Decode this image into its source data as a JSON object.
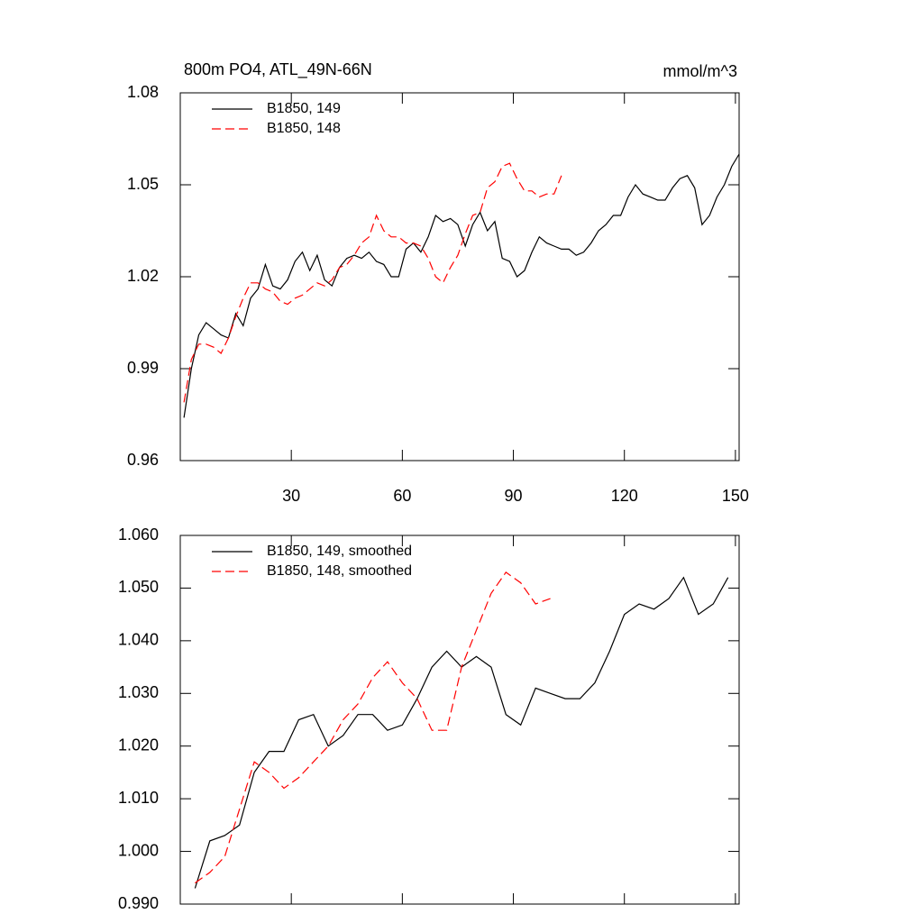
{
  "chart_data": [
    {
      "type": "line",
      "title": "800m PO4, ATL_49N-66N",
      "units": "mmol/m^3",
      "x": [
        1,
        3,
        5,
        7,
        9,
        11,
        13,
        15,
        17,
        19,
        21,
        23,
        25,
        27,
        29,
        31,
        33,
        35,
        37,
        39,
        41,
        43,
        45,
        47,
        49,
        51,
        53,
        55,
        57,
        59,
        61,
        63,
        65,
        67,
        69,
        71,
        73,
        75,
        77,
        79,
        81,
        83,
        85,
        87,
        89,
        91,
        93,
        95,
        97,
        99,
        101,
        103,
        105,
        107,
        109,
        111,
        113,
        115,
        117,
        119,
        121,
        123,
        125,
        127,
        129,
        131,
        133,
        135,
        137,
        139,
        141,
        143,
        145,
        147,
        149,
        151
      ],
      "series": [
        {
          "name": "B1850, 149",
          "color": "#000000",
          "line_style": "solid",
          "values": [
            0.974,
            0.99,
            1.001,
            1.005,
            1.003,
            1.001,
            1.0,
            1.008,
            1.004,
            1.013,
            1.016,
            1.024,
            1.017,
            1.016,
            1.019,
            1.025,
            1.028,
            1.022,
            1.027,
            1.019,
            1.017,
            1.023,
            1.026,
            1.027,
            1.026,
            1.028,
            1.025,
            1.024,
            1.02,
            1.02,
            1.029,
            1.031,
            1.028,
            1.033,
            1.04,
            1.038,
            1.039,
            1.037,
            1.03,
            1.037,
            1.041,
            1.035,
            1.038,
            1.026,
            1.025,
            1.02,
            1.022,
            1.028,
            1.033,
            1.031,
            1.03,
            1.029,
            1.029,
            1.027,
            1.028,
            1.031,
            1.035,
            1.037,
            1.04,
            1.04,
            1.046,
            1.05,
            1.047,
            1.046,
            1.045,
            1.045,
            1.049,
            1.052,
            1.053,
            1.049,
            1.037,
            1.04,
            1.046,
            1.05,
            1.056,
            1.06
          ]
        },
        {
          "name": "B1850, 148",
          "color": "#ff0000",
          "line_style": "dashed",
          "values": [
            0.979,
            0.993,
            0.998,
            0.998,
            0.997,
            0.995,
            1.0,
            1.007,
            1.013,
            1.018,
            1.018,
            1.016,
            1.015,
            1.012,
            1.011,
            1.013,
            1.014,
            1.016,
            1.018,
            1.017,
            1.019,
            1.023,
            1.024,
            1.027,
            1.031,
            1.033,
            1.04,
            1.035,
            1.033,
            1.033,
            1.031,
            1.031,
            1.03,
            1.026,
            1.02,
            1.018,
            1.023,
            1.027,
            1.034,
            1.04,
            1.041,
            1.049,
            1.051,
            1.056,
            1.057,
            1.052,
            1.048,
            1.048,
            1.046,
            1.047,
            1.047,
            1.053,
            null,
            null,
            null,
            null,
            null,
            null,
            null,
            null,
            null,
            null,
            null,
            null,
            null,
            null,
            null,
            null,
            null,
            null,
            null,
            null,
            null,
            null,
            null,
            null
          ]
        }
      ],
      "xlim": [
        0,
        151
      ],
      "xticks": [
        30,
        60,
        90,
        120,
        150
      ],
      "ylim": [
        0.96,
        1.08
      ],
      "yticks": [
        0.96,
        0.99,
        1.02,
        1.05,
        1.08
      ],
      "legend": "upper left"
    },
    {
      "type": "line",
      "x": [
        4,
        8,
        12,
        16,
        20,
        24,
        28,
        32,
        36,
        40,
        44,
        48,
        52,
        56,
        60,
        64,
        68,
        72,
        76,
        80,
        84,
        88,
        92,
        96,
        100,
        104,
        108,
        112,
        116,
        120,
        124,
        128,
        132,
        136,
        140,
        144,
        148
      ],
      "series": [
        {
          "name": "B1850, 149, smoothed",
          "color": "#000000",
          "line_style": "solid",
          "values": [
            0.993,
            1.002,
            1.003,
            1.005,
            1.015,
            1.019,
            1.019,
            1.025,
            1.026,
            1.02,
            1.022,
            1.026,
            1.026,
            1.023,
            1.024,
            1.029,
            1.035,
            1.038,
            1.035,
            1.037,
            1.035,
            1.026,
            1.024,
            1.031,
            1.03,
            1.029,
            1.029,
            1.032,
            1.038,
            1.045,
            1.047,
            1.046,
            1.048,
            1.052,
            1.045,
            1.047,
            1.052
          ]
        },
        {
          "name": "B1850, 148, smoothed",
          "color": "#ff0000",
          "line_style": "dashed",
          "values": [
            0.994,
            0.996,
            0.999,
            1.008,
            1.017,
            1.015,
            1.012,
            1.014,
            1.017,
            1.02,
            1.025,
            1.028,
            1.033,
            1.036,
            1.032,
            1.029,
            1.023,
            1.023,
            1.035,
            1.042,
            1.049,
            1.053,
            1.051,
            1.047,
            1.048,
            null,
            null,
            null,
            null,
            null,
            null,
            null,
            null,
            null,
            null,
            null,
            null
          ]
        }
      ],
      "xlim": [
        0,
        151
      ],
      "xticks": [
        30,
        60,
        90,
        120,
        150
      ],
      "ylim": [
        0.99,
        1.06
      ],
      "yticks": [
        {
          "value": 0.99,
          "label": "0.990"
        },
        {
          "value": 1.0,
          "label": "1.000"
        },
        {
          "value": 1.01,
          "label": "1.010"
        },
        {
          "value": 1.02,
          "label": "1.020"
        },
        {
          "value": 1.03,
          "label": "1.030"
        },
        {
          "value": 1.04,
          "label": "1.040"
        },
        {
          "value": 1.05,
          "label": "1.050"
        },
        {
          "value": 1.06,
          "label": "1.060"
        }
      ],
      "legend": "upper left"
    }
  ]
}
